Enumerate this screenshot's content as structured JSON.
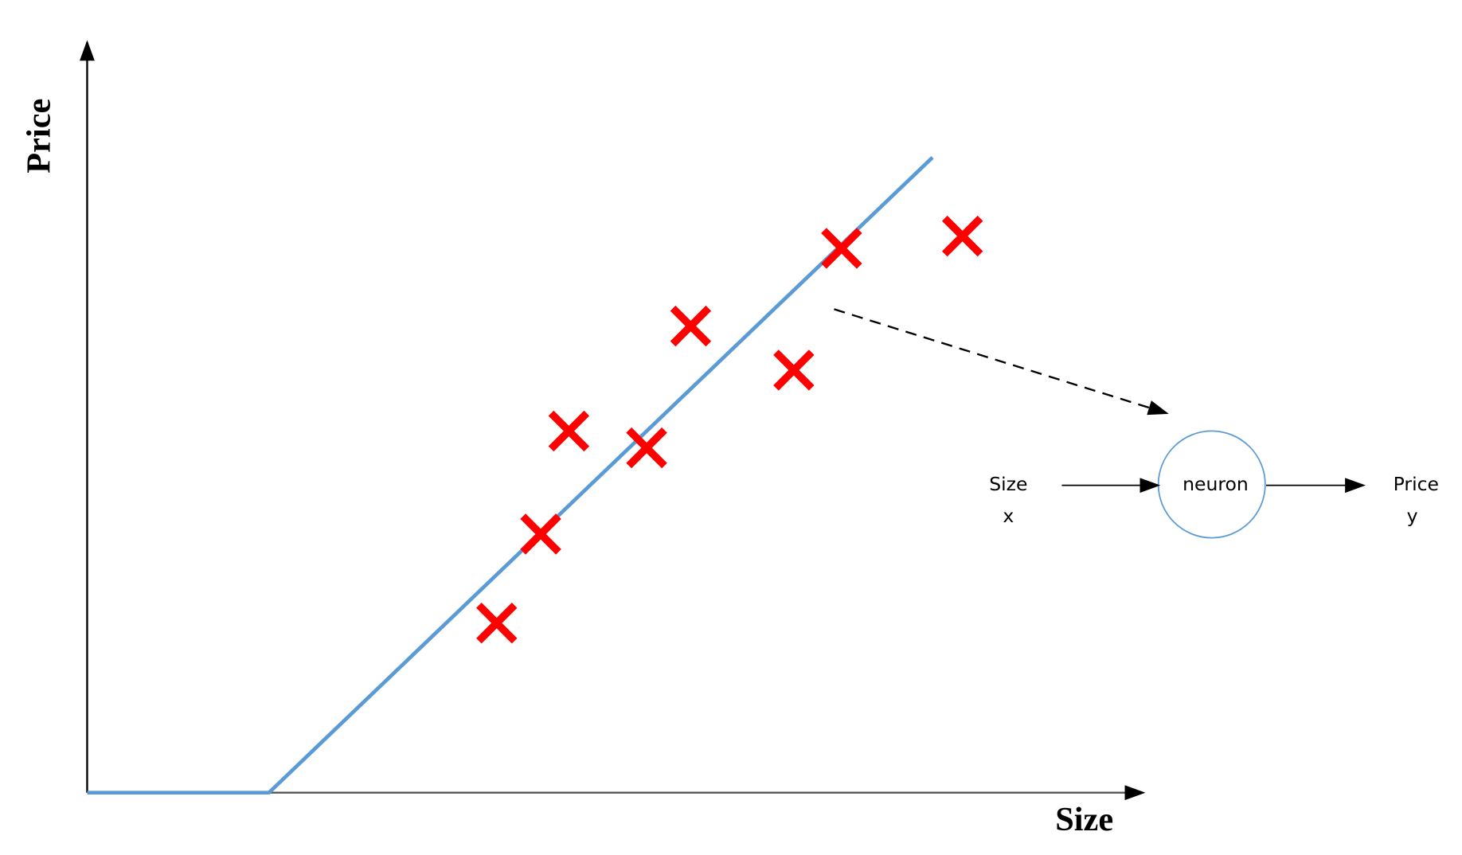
{
  "axes": {
    "y_label": "Price",
    "x_label": "Size"
  },
  "neuron": {
    "input_label": "Size",
    "input_symbol": "x",
    "label": "neuron",
    "output_label": "Price",
    "output_symbol": "y"
  }
}
